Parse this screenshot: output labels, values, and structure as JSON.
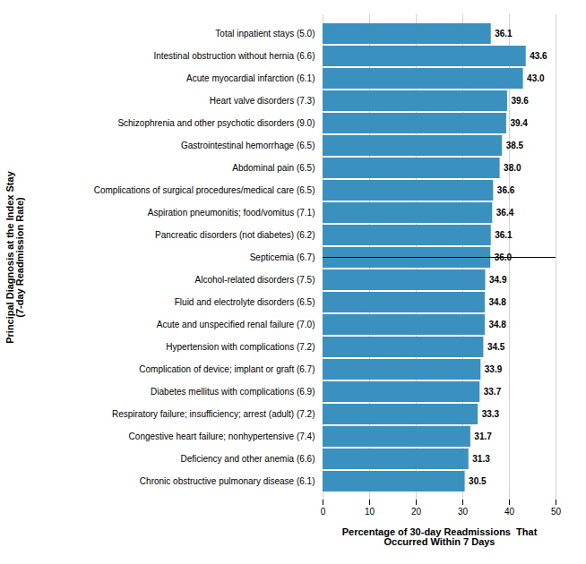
{
  "chart_data": {
    "type": "bar",
    "orientation": "horizontal",
    "categories": [
      "Chronic obstructive pulmonary disease (6.1)",
      "Deficiency and other anemia (6.6)",
      "Congestive heart failure; nonhypertensive (7.4)",
      "Respiratory failure; insufficiency; arrest (adult) (7.2)",
      "Diabetes mellitus with complications (6.9)",
      "Complication of device; implant or graft (6.7)",
      "Hypertension with complications (7.2)",
      "Acute and unspecified renal failure (7.0)",
      "Fluid and electrolyte disorders (6.5)",
      "Alcohol-related disorders (7.5)",
      "Septicemia (6.7)",
      "Pancreatic disorders (not diabetes) (6.2)",
      "Aspiration pneumonitis; food/vomitus (7.1)",
      "Complications of surgical procedures/medical care (6.5)",
      "Abdominal pain (6.5)",
      "Gastrointestinal hemorrhage (6.5)",
      "Schizophrenia and other psychotic disorders (9.0)",
      "Heart valve disorders (7.3)",
      "Acute myocardial infarction (6.1)",
      "Intestinal obstruction without hernia (6.6)",
      "Total inpatient stays (5.0)"
    ],
    "values": [
      30.5,
      31.3,
      31.7,
      33.3,
      33.7,
      33.9,
      34.5,
      34.8,
      34.8,
      34.9,
      36.0,
      36.1,
      36.4,
      36.6,
      38.0,
      38.5,
      39.4,
      39.6,
      43.0,
      43.6,
      36.1
    ],
    "value_labels": [
      "30.5",
      "31.3",
      "31.7",
      "33.3",
      "33.7",
      "33.9",
      "34.5",
      "34.8",
      "34.8",
      "34.9",
      "36.0",
      "36.1",
      "36.4",
      "36.6",
      "38.0",
      "38.5",
      "39.4",
      "39.6",
      "43.0",
      "43.6",
      "36.1"
    ],
    "color": "#3A90BE",
    "xlabel": "Percentage of 30-day Readmissions  That\nOccurred Within 7 Days",
    "ylabel": "Principal Diagnosis at the Index Stay\n(7-day Readmission Rate)",
    "xlim": [
      0,
      50
    ],
    "xticks": [
      0,
      10,
      20,
      30,
      40,
      50
    ],
    "grid": true,
    "data_labels": true
  }
}
